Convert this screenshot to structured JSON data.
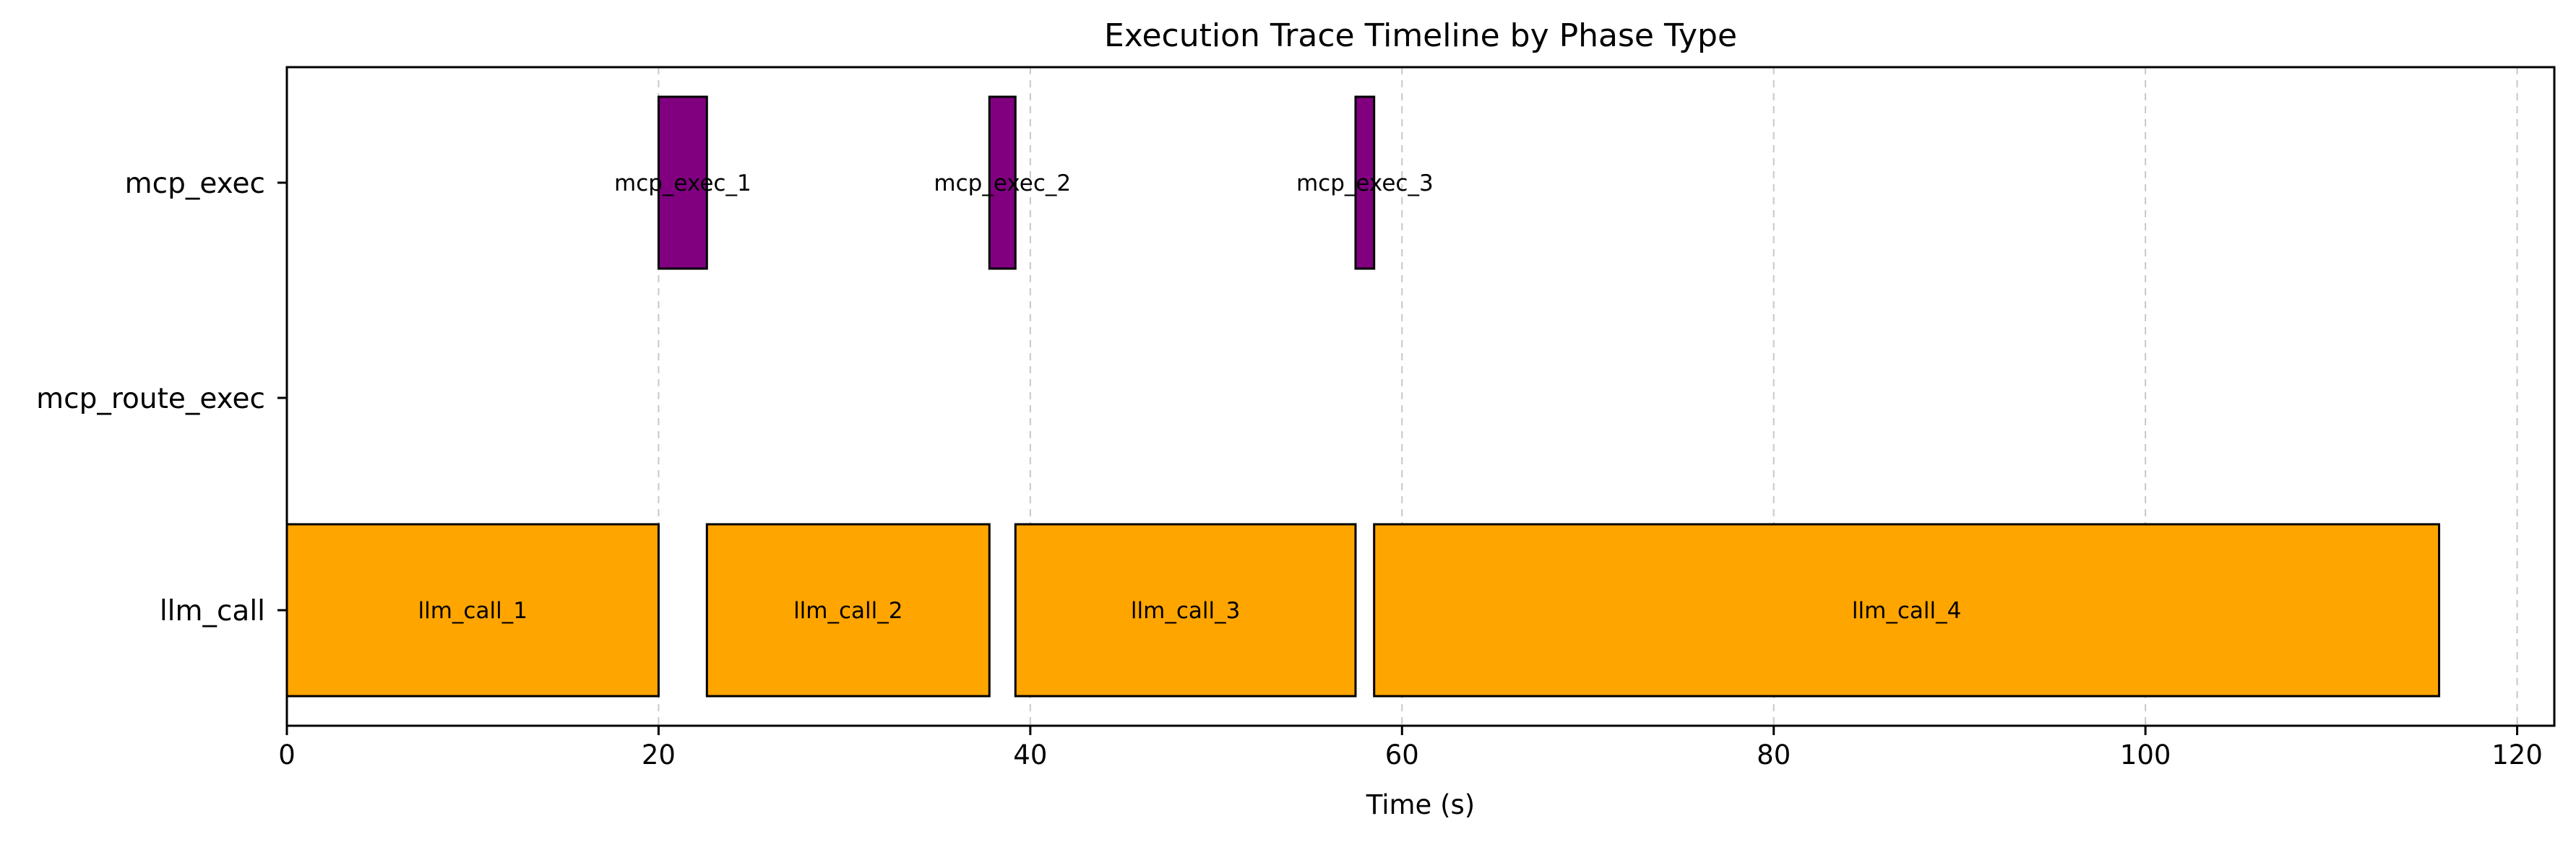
{
  "chart_data": {
    "type": "timeline",
    "title": "Execution Trace Timeline by Phase Type",
    "xlabel": "Time (s)",
    "ylabel": "",
    "xlim": [
      0,
      122
    ],
    "x_ticks": [
      0,
      20,
      40,
      60,
      80,
      100,
      120
    ],
    "grid": "x-dashed",
    "categories": [
      "mcp_exec",
      "mcp_route_exec",
      "llm_call"
    ],
    "colors": {
      "llm_call": "#FFA500",
      "mcp_exec": "#800080",
      "edge": "#000000"
    },
    "intervals": [
      {
        "label": "llm_call_1",
        "category": "llm_call",
        "start": 0.0,
        "end": 20.0
      },
      {
        "label": "llm_call_2",
        "category": "llm_call",
        "start": 22.6,
        "end": 37.8
      },
      {
        "label": "llm_call_3",
        "category": "llm_call",
        "start": 39.2,
        "end": 57.5
      },
      {
        "label": "llm_call_4",
        "category": "llm_call",
        "start": 58.5,
        "end": 115.8
      },
      {
        "label": "mcp_exec_1",
        "category": "mcp_exec",
        "start": 20.0,
        "end": 22.6
      },
      {
        "label": "mcp_exec_2",
        "category": "mcp_exec",
        "start": 37.8,
        "end": 39.2
      },
      {
        "label": "mcp_exec_3",
        "category": "mcp_exec",
        "start": 57.5,
        "end": 58.5
      }
    ]
  }
}
